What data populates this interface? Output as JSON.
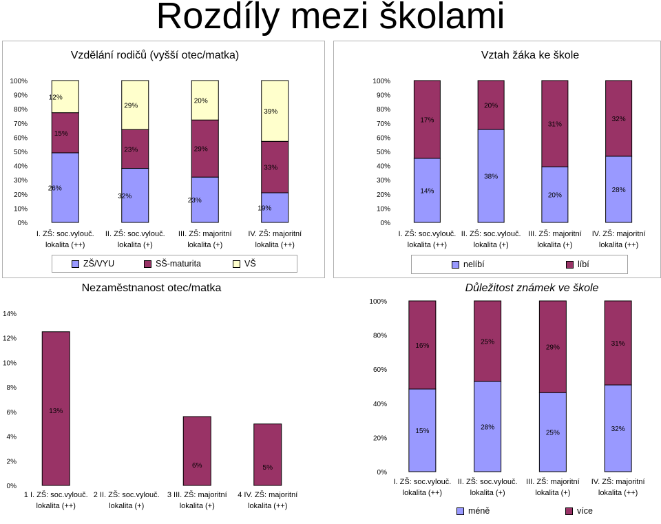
{
  "page": {
    "title": "Rozdíly mezi školami"
  },
  "colors": {
    "zs_vyu": "#9999ff",
    "ss_maturita": "#993366",
    "vs": "#ffffcc",
    "axis": "#000000"
  },
  "legends": {
    "education": [
      "ZŠ/VYU",
      "SŠ-maturita",
      "VŠ"
    ],
    "relationship": [
      "nelíbí",
      "líbí"
    ],
    "grades": [
      "méně",
      "více"
    ]
  },
  "chart_data": [
    {
      "id": "education",
      "type": "bar",
      "stacked": true,
      "percent_stacked": true,
      "title": "Vzdělání rodičů (vyšší otec/matka)",
      "categories": [
        [
          "I. ZŠ: soc.vylouč.",
          "lokalita (++)"
        ],
        [
          "II. ZŠ: soc.vylouč.",
          "lokalita (+)"
        ],
        [
          "III. ZŠ: majoritní",
          "lokalita (+)"
        ],
        [
          "IV. ZŠ: majoritní",
          "lokalita (++)"
        ]
      ],
      "series": [
        {
          "name": "ZŠ/VYU",
          "values": [
            26,
            32,
            23,
            19
          ],
          "labels": [
            "26%",
            "32%",
            "23%",
            "19%"
          ]
        },
        {
          "name": "SŠ-maturita",
          "values": [
            15,
            23,
            29,
            33
          ],
          "labels": [
            "15%",
            "23%",
            "29%",
            "33%"
          ]
        },
        {
          "name": "VŠ",
          "values": [
            12,
            29,
            20,
            39
          ],
          "labels": [
            "12%",
            "29%",
            "20%",
            "39%"
          ]
        }
      ],
      "yticks": [
        "0%",
        "10%",
        "20%",
        "30%",
        "40%",
        "50%",
        "60%",
        "70%",
        "80%",
        "90%",
        "100%"
      ],
      "ylim": [
        0,
        100
      ]
    },
    {
      "id": "relationship",
      "type": "bar",
      "stacked": true,
      "percent_stacked": true,
      "title": "Vztah žáka ke škole",
      "categories": [
        [
          "I. ZŠ: soc.vylouč.",
          "lokalita (++)"
        ],
        [
          "II. ZŠ: soc.vylouč.",
          "lokalita (+)"
        ],
        [
          "III. ZŠ: majoritní",
          "lokalita (+)"
        ],
        [
          "IV. ZŠ: majoritní",
          "lokalita (++)"
        ]
      ],
      "series": [
        {
          "name": "nelíbí",
          "values": [
            14,
            38,
            20,
            28
          ],
          "labels": [
            "14%",
            "38%",
            "20%",
            "28%"
          ]
        },
        {
          "name": "líbí",
          "values": [
            17,
            20,
            31,
            32
          ],
          "labels": [
            "17%",
            "20%",
            "31%",
            "32%"
          ]
        }
      ],
      "yticks": [
        "0%",
        "10%",
        "20%",
        "30%",
        "40%",
        "50%",
        "60%",
        "70%",
        "80%",
        "90%",
        "100%"
      ],
      "ylim": [
        0,
        100
      ]
    },
    {
      "id": "unemployment",
      "type": "bar",
      "title": "Nezaměstnanost otec/matka",
      "categories": [
        [
          "1 I. ZŠ: soc.vylouč.",
          "lokalita (++)"
        ],
        [
          "2 II. ZŠ: soc.vylouč.",
          "lokalita (+)"
        ],
        [
          "3 III. ZŠ: majoritní",
          "lokalita (+)"
        ],
        [
          "4 IV. ZŠ: majoritní",
          "lokalita (++)"
        ]
      ],
      "series": [
        {
          "values": [
            12.5,
            0,
            5.6,
            5.0
          ],
          "labels": [
            "13%",
            "",
            "6%",
            "5%"
          ]
        }
      ],
      "yticks": [
        "0%",
        "2%",
        "4%",
        "6%",
        "8%",
        "10%",
        "12%",
        "14%"
      ],
      "ylim": [
        0,
        14
      ]
    },
    {
      "id": "grades",
      "type": "bar",
      "stacked": true,
      "percent_stacked": true,
      "title": "Důležitost známek ve škole",
      "categories": [
        [
          "I. ZŠ: soc.vylouč.",
          "lokalita (++)"
        ],
        [
          "II. ZŠ: soc.vylouč.",
          "lokalita (+)"
        ],
        [
          "III. ZŠ: majoritní",
          "lokalita (+)"
        ],
        [
          "IV. ZŠ: majoritní",
          "lokalita (++)"
        ]
      ],
      "series": [
        {
          "name": "méně",
          "values": [
            15,
            28,
            25,
            32
          ],
          "labels": [
            "15%",
            "28%",
            "25%",
            "32%"
          ]
        },
        {
          "name": "více",
          "values": [
            16,
            25,
            29,
            31
          ],
          "labels": [
            "16%",
            "25%",
            "29%",
            "31%"
          ]
        }
      ],
      "yticks": [
        "0%",
        "20%",
        "40%",
        "60%",
        "80%",
        "100%"
      ],
      "ylim": [
        0,
        100
      ]
    }
  ]
}
